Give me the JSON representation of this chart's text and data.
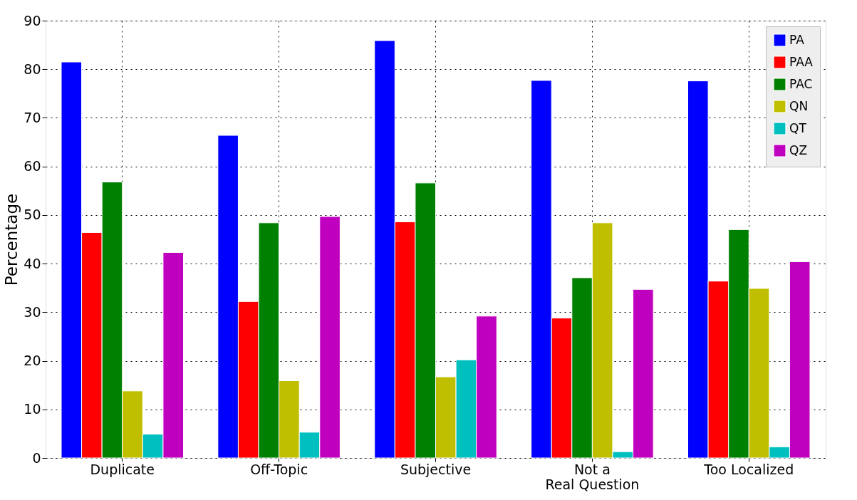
{
  "chart_data": {
    "type": "bar",
    "ylabel": "Percentage",
    "categories": [
      "Duplicate",
      "Off-Topic",
      "Subjective",
      "Not a\nReal Question",
      "Too Localized"
    ],
    "series": [
      {
        "name": "PA",
        "color": "#0000ff",
        "values": [
          81.5,
          66.4,
          85.9,
          77.7,
          77.6
        ]
      },
      {
        "name": "PAA",
        "color": "#ff0000",
        "values": [
          46.4,
          32.2,
          48.6,
          28.8,
          36.4
        ]
      },
      {
        "name": "PAC",
        "color": "#008000",
        "values": [
          56.8,
          48.4,
          56.6,
          37.1,
          47.0
        ]
      },
      {
        "name": "QN",
        "color": "#bfbf00",
        "values": [
          13.8,
          15.9,
          16.7,
          48.4,
          34.9
        ]
      },
      {
        "name": "QT",
        "color": "#00bfbf",
        "values": [
          4.9,
          5.3,
          20.2,
          1.3,
          2.3
        ]
      },
      {
        "name": "QZ",
        "color": "#bf00bf",
        "values": [
          42.3,
          49.7,
          29.2,
          34.7,
          40.4
        ]
      }
    ],
    "ylim": [
      0,
      90
    ],
    "yticks": [
      0,
      10,
      20,
      30,
      40,
      50,
      60,
      70,
      80,
      90
    ],
    "grid": true,
    "legend": "top right"
  }
}
